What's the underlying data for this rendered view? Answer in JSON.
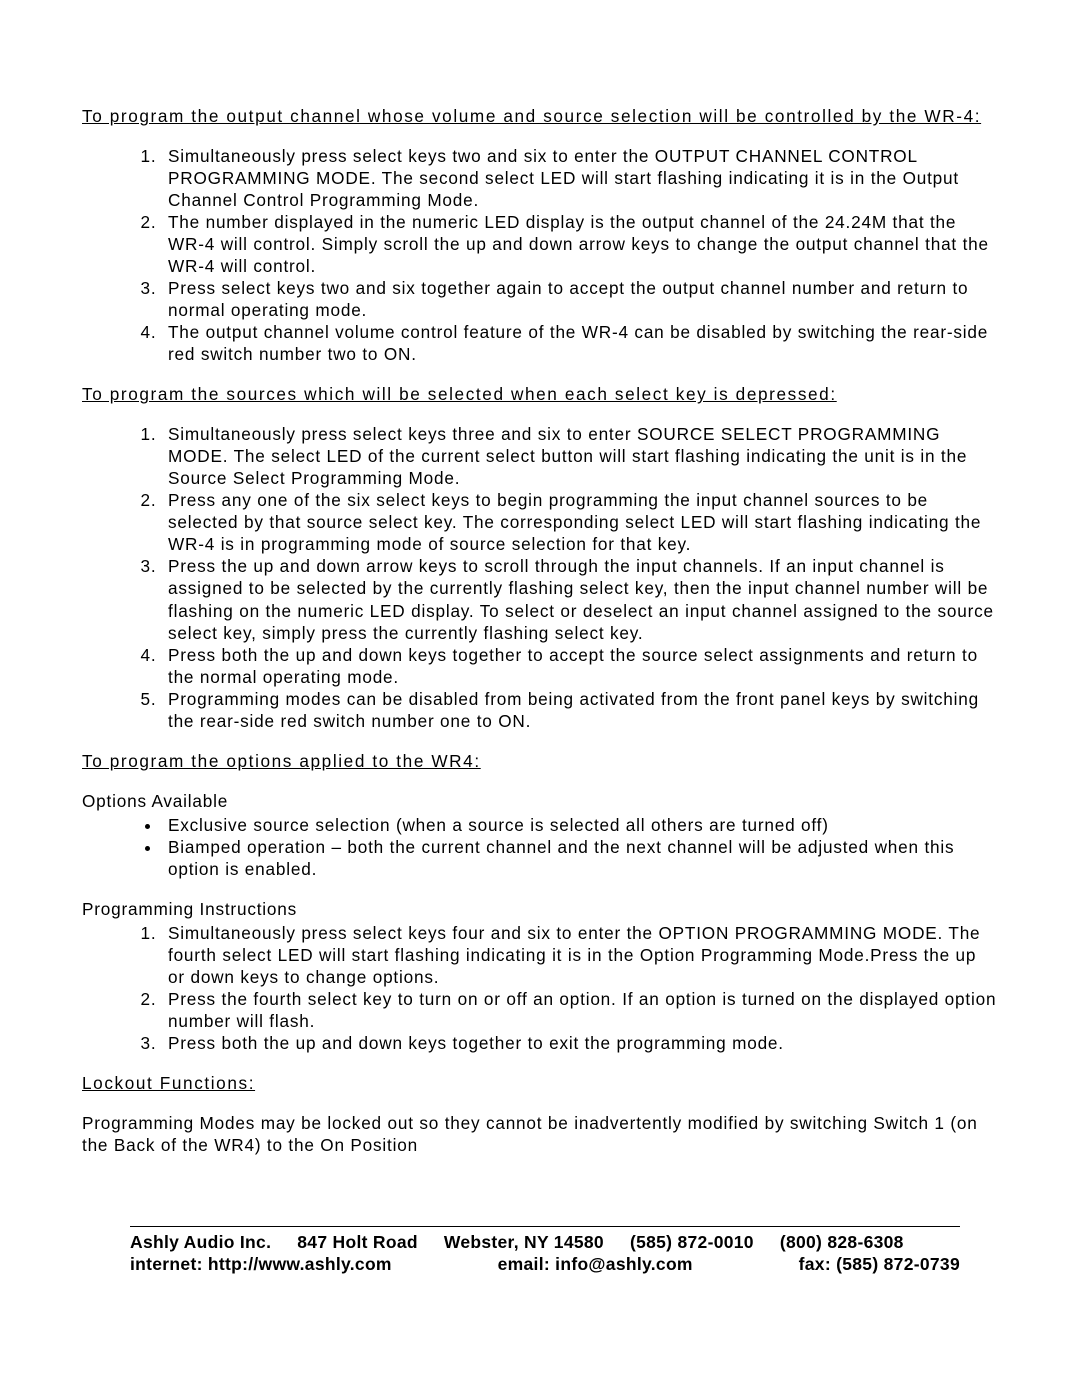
{
  "section1": {
    "heading": "To program the output channel whose volume and source selection will be controlled by the WR-4:",
    "items": [
      "Simultaneously press select keys two and six to enter the OUTPUT CHANNEL CONTROL PROGRAMMING MODE.  The second select LED will start flashing indicating it is in the Output Channel Control Programming Mode.",
      "The number displayed in the numeric LED display is the output channel of the 24.24M that the WR-4 will control.  Simply scroll the up and down arrow keys to change the output channel that the WR-4 will control.",
      "Press select keys two and six together again to accept the output channel number and return to normal operating mode.",
      "The output channel volume control feature of the WR-4 can be disabled by switching the rear-side red switch number two to ON."
    ]
  },
  "section2": {
    "heading": "To program the sources which will be selected when each select key is depressed:",
    "items": [
      "Simultaneously press select keys three and six to enter SOURCE SELECT PROGRAMMING MODE.  The select LED of the current select button will start flashing indicating the unit is in the Source Select Programming Mode.",
      "Press any one of the six select keys to begin programming the input channel sources to be selected by that source select key.  The corresponding select LED will start flashing indicating the WR-4 is in programming mode of source selection for that key.",
      "Press the up and down arrow keys to scroll through the input channels.  If an input channel is assigned to be selected by the currently flashing select key, then the input channel number will be flashing on the numeric LED display.  To select or deselect an input channel assigned to the source select key, simply press the currently flashing select key.",
      "Press both the up and down keys together to accept the source select assignments and return to the normal operating mode.",
      "Programming modes can be disabled from being activated from the front panel keys by switching the rear-side red switch number one to ON."
    ]
  },
  "section3": {
    "heading": "To program the options applied to the WR4:",
    "optionsLabel": "Options Available",
    "options": [
      "Exclusive source selection (when a source is selected all others are turned off)",
      "Biamped operation – both the current channel and the next channel will be adjusted when this option is enabled."
    ],
    "instrLabel": "Programming Instructions",
    "instructions": [
      "Simultaneously press select keys four and six to enter the OPTION PROGRAMMING MODE. The fourth select LED will start flashing indicating it is in the Option Programming Mode.Press the up or down keys to change options.",
      "Press the fourth select key to turn on or off an option.  If an option is turned on the displayed option number will flash.",
      "Press both the up and down keys together to exit the programming mode."
    ]
  },
  "section4": {
    "heading": "Lockout Functions:",
    "body": "Programming Modes may be locked out so they cannot be inadvertently modified by switching Switch 1 (on the Back of the WR4) to the On Position"
  },
  "footer": {
    "company": "Ashly Audio Inc.",
    "address": "847 Holt Road",
    "citystate": "Webster, NY  14580",
    "phone1": "(585) 872-0010",
    "phone2": "(800) 828-6308",
    "internet": "internet: http://www.ashly.com",
    "email": "email: info@ashly.com",
    "fax": "fax:  (585) 872-0739"
  }
}
